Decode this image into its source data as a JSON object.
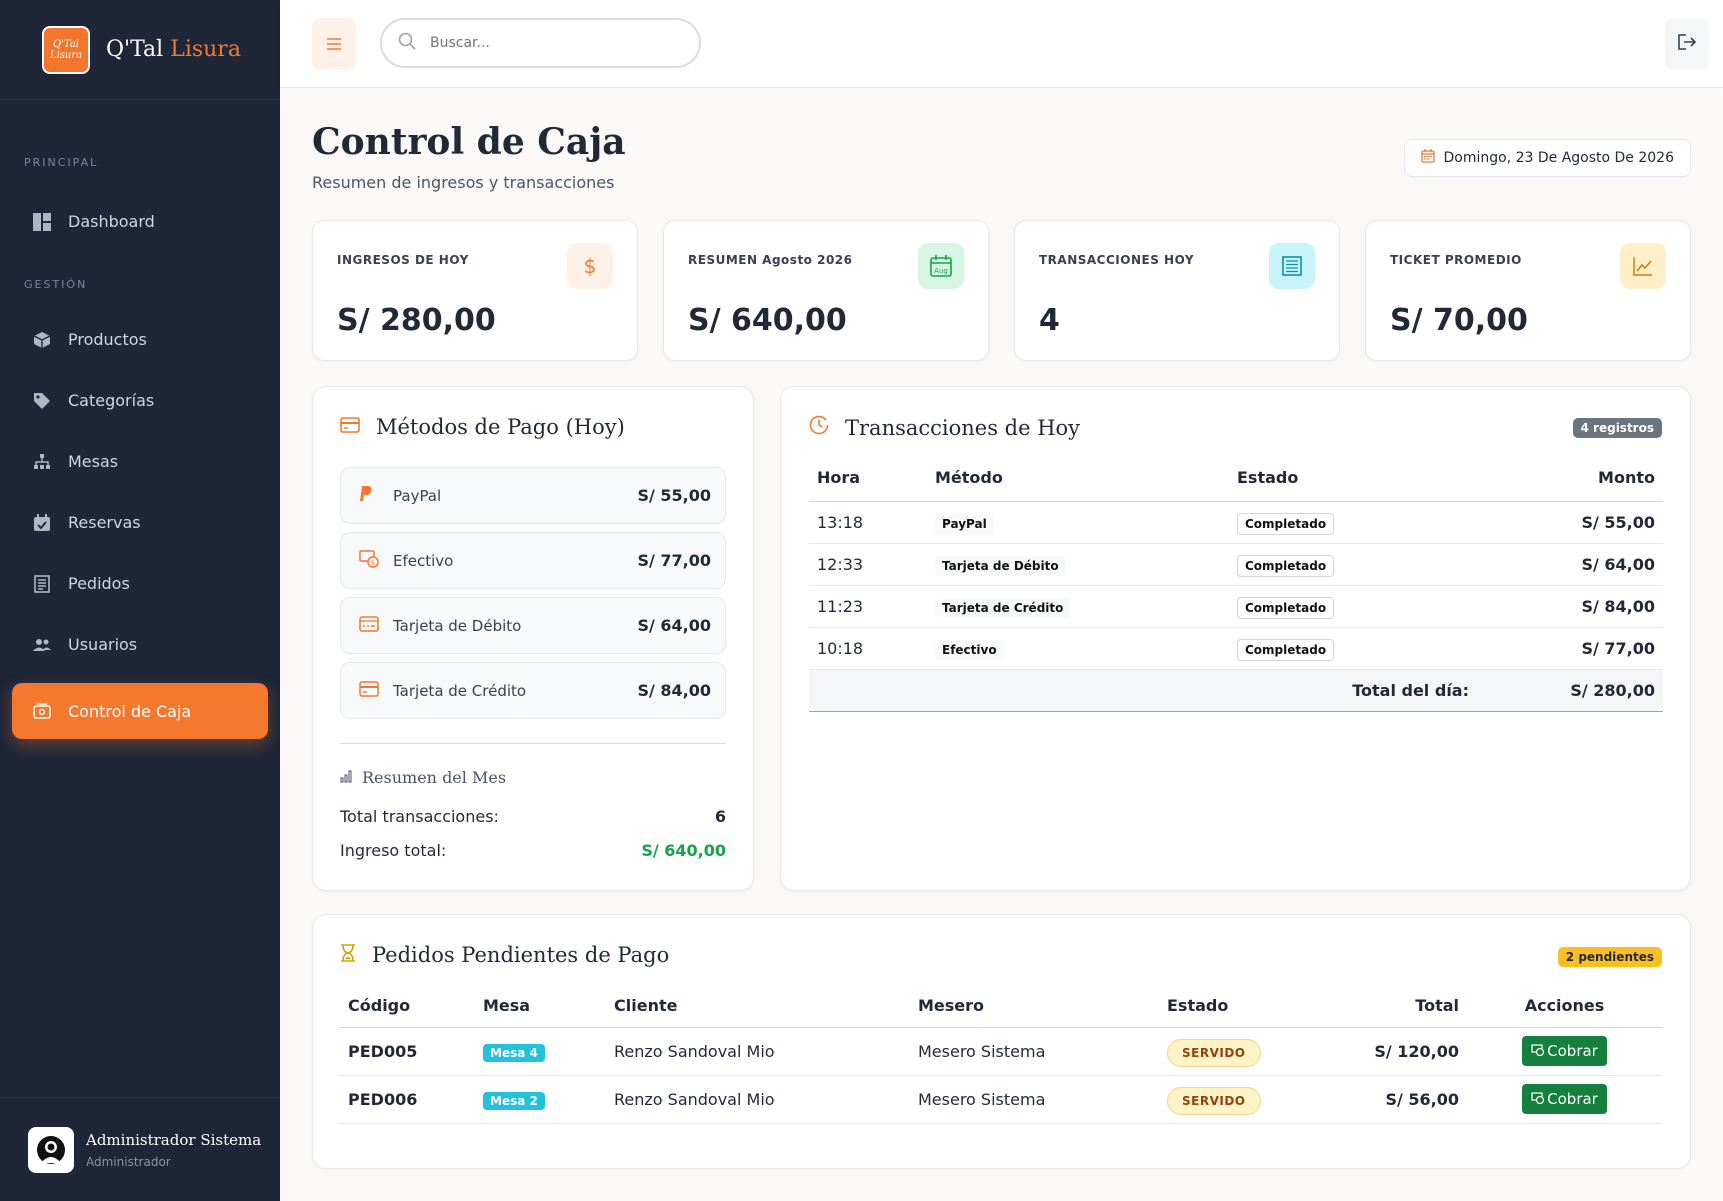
{
  "brand": {
    "logo_text_1": "Q'Tal",
    "logo_text_2": "Lisura",
    "name_part1": "Q'Tal ",
    "name_part2": "Lisura",
    "accent_color": "#f5782f"
  },
  "sidebar": {
    "section_principal": "PRINCIPAL",
    "section_gestion": "GESTIÓN",
    "items": [
      {
        "label": "Dashboard",
        "icon": "dashboard-icon"
      },
      {
        "label": "Productos",
        "icon": "box-icon"
      },
      {
        "label": "Categorías",
        "icon": "tag-icon"
      },
      {
        "label": "Mesas",
        "icon": "sitemap-icon"
      },
      {
        "label": "Reservas",
        "icon": "calendar-check-icon"
      },
      {
        "label": "Pedidos",
        "icon": "receipt-icon"
      },
      {
        "label": "Usuarios",
        "icon": "users-icon"
      },
      {
        "label": "Control de Caja",
        "icon": "cash-register-icon"
      }
    ],
    "user": {
      "name": "Administrador Sistema",
      "role": "Administrador"
    }
  },
  "topbar": {
    "search_placeholder": "Buscar..."
  },
  "page": {
    "title": "Control de Caja",
    "subtitle": "Resumen de ingresos y transacciones",
    "date": "Domingo, 23 De Agosto De 2026"
  },
  "stats": [
    {
      "label": "INGRESOS DE HOY",
      "value": "S/ 280,00",
      "icon": "dollar-icon",
      "icon_glyph": "$",
      "color": "#f5782f",
      "bg": "#fff1e7"
    },
    {
      "label": "RESUMEN Agosto 2026",
      "value": "S/ 640,00",
      "icon": "calendar-icon",
      "icon_glyph": "Aug",
      "color": "#16a34a",
      "bg": "#dcfce7"
    },
    {
      "label": "TRANSACCIONES HOY",
      "value": "4",
      "icon": "list-icon",
      "icon_glyph": "≣",
      "color": "#0891b2",
      "bg": "#cffafe"
    },
    {
      "label": "TICKET PROMEDIO",
      "value": "S/ 70,00",
      "icon": "chart-line-icon",
      "icon_glyph": "⟋",
      "color": "#d97706",
      "bg": "#fef3c7"
    }
  ],
  "payment_methods": {
    "title": "Métodos de Pago (Hoy)",
    "items": [
      {
        "name": "PayPal",
        "amount": "S/ 55,00",
        "icon": "paypal-icon",
        "glyph": "P"
      },
      {
        "name": "Efectivo",
        "amount": "S/ 77,00",
        "icon": "cash-icon",
        "glyph": "⊚"
      },
      {
        "name": "Tarjeta de Débito",
        "amount": "S/ 64,00",
        "icon": "debit-card-icon",
        "glyph": "▭"
      },
      {
        "name": "Tarjeta de Crédito",
        "amount": "S/ 84,00",
        "icon": "credit-card-icon",
        "glyph": "▭"
      }
    ],
    "month_title": "Resumen del Mes",
    "total_tx_label": "Total transacciones:",
    "total_tx_value": "6",
    "total_income_label": "Ingreso total:",
    "total_income_value": "S/ 640,00"
  },
  "transactions": {
    "title": "Transacciones de Hoy",
    "badge": "4 registros",
    "columns": [
      "Hora",
      "Método",
      "Estado",
      "Monto"
    ],
    "rows": [
      {
        "time": "13:18",
        "method": "PayPal",
        "status": "Completado",
        "amount": "S/ 55,00"
      },
      {
        "time": "12:33",
        "method": "Tarjeta de Débito",
        "status": "Completado",
        "amount": "S/ 64,00"
      },
      {
        "time": "11:23",
        "method": "Tarjeta de Crédito",
        "status": "Completado",
        "amount": "S/ 84,00"
      },
      {
        "time": "10:18",
        "method": "Efectivo",
        "status": "Completado",
        "amount": "S/ 77,00"
      }
    ],
    "total_label": "Total del día:",
    "total_value": "S/ 280,00"
  },
  "pending": {
    "title": "Pedidos Pendientes de Pago",
    "badge": "2 pendientes",
    "columns": [
      "Código",
      "Mesa",
      "Cliente",
      "Mesero",
      "Estado",
      "Total",
      "Acciones"
    ],
    "rows": [
      {
        "code": "PED005",
        "table": "Mesa 4",
        "client": "Renzo Sandoval Mio",
        "waiter": "Mesero Sistema",
        "status": "SERVIDO",
        "total": "S/ 120,00",
        "action": "Cobrar"
      },
      {
        "code": "PED006",
        "table": "Mesa 2",
        "client": "Renzo Sandoval Mio",
        "waiter": "Mesero Sistema",
        "status": "SERVIDO",
        "total": "S/ 56,00",
        "action": "Cobrar"
      }
    ]
  }
}
